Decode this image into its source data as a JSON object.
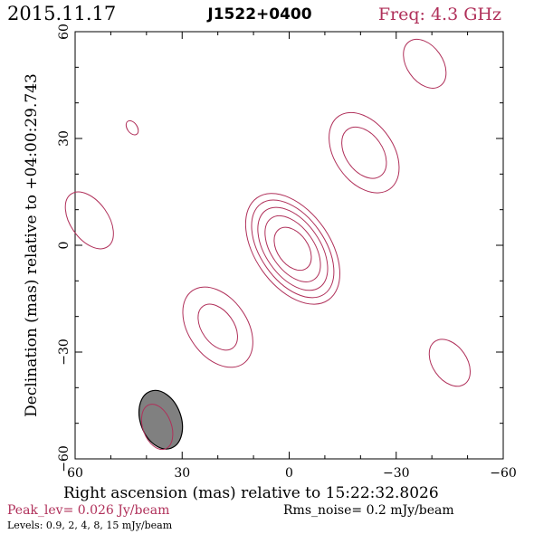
{
  "header": {
    "date": "2015.11.17",
    "source": "J1522+0400",
    "freq": "Freq: 4.3 GHz"
  },
  "footer": {
    "peak": "Peak_lev=  0.026 Jy/beam",
    "rms": "Rms_noise=  0.2 mJy/beam",
    "levels": "Levels: 0.9,   2,   4,   8,   15 mJy/beam"
  },
  "colors": {
    "contour": "#b0305a",
    "beam_fill": "#808080",
    "axis": "#000000",
    "accent_text": "#b0305a"
  },
  "chart_data": {
    "type": "contour",
    "xlabel": "Right ascension (mas) relative to 15:22:32.8026",
    "ylabel": "Declination (mas) relative to +04:00:29.743",
    "xlim": [
      60,
      -60
    ],
    "ylim": [
      -60,
      60
    ],
    "xticks": [
      60,
      30,
      0,
      -30,
      -60
    ],
    "yticks": [
      -60,
      -30,
      0,
      30,
      60
    ],
    "levels_mJy_per_beam": [
      0.9,
      2,
      4,
      8,
      15
    ],
    "components": [
      {
        "name": "core",
        "x": -1,
        "y": -1,
        "rings": [
          {
            "a": 17.5,
            "b": 10.5,
            "angle": 35
          },
          {
            "a": 15.5,
            "b": 9.0,
            "angle": 35
          },
          {
            "a": 13.2,
            "b": 7.6,
            "angle": 35
          },
          {
            "a": 10.5,
            "b": 6.0,
            "angle": 35
          },
          {
            "a": 6.7,
            "b": 4.3,
            "angle": 35
          }
        ]
      },
      {
        "name": "jet-se",
        "x": -21,
        "y": 26,
        "rings": [
          {
            "a": 12.5,
            "b": 8.2,
            "angle": 35
          },
          {
            "a": 8.0,
            "b": 5.2,
            "angle": 35
          }
        ]
      },
      {
        "name": "jet-nw",
        "x": 20,
        "y": -23,
        "rings": [
          {
            "a": 12.5,
            "b": 8.2,
            "angle": 35
          },
          {
            "a": 7.2,
            "b": 4.5,
            "angle": 35
          }
        ]
      },
      {
        "name": "blob-ne-top",
        "x": -38,
        "y": 51,
        "rings": [
          {
            "a": 7.6,
            "b": 5.0,
            "angle": 35
          }
        ]
      },
      {
        "name": "blob-w",
        "x": 56,
        "y": 7,
        "rings": [
          {
            "a": 9.0,
            "b": 5.3,
            "angle": 35
          }
        ]
      },
      {
        "name": "blob-sw",
        "x": -45,
        "y": -33,
        "rings": [
          {
            "a": 7.3,
            "b": 4.8,
            "angle": 35
          }
        ]
      },
      {
        "name": "blob-small",
        "x": 44,
        "y": 33,
        "rings": [
          {
            "a": 2.2,
            "b": 1.4,
            "angle": 35
          }
        ]
      },
      {
        "name": "beam-contour",
        "x": 37,
        "y": -51,
        "rings": [
          {
            "a": 6.6,
            "b": 4.0,
            "angle": 20
          }
        ]
      }
    ],
    "beam": {
      "x": 36,
      "y": -49,
      "a": 8.5,
      "b": 5.7,
      "angle": 20
    }
  }
}
